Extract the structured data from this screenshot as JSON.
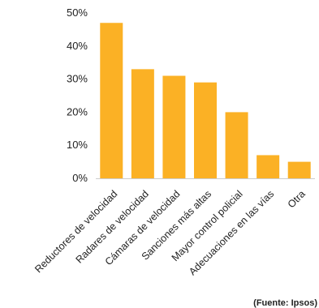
{
  "chart_data": {
    "type": "bar",
    "categories": [
      "Reductores de velocidad",
      "Radares de velocidad",
      "Cámaras de velocidad",
      "Sanciones más altas",
      "Mayor control policial",
      "Adecuaciones en las vías",
      "Otra"
    ],
    "values": [
      47,
      33,
      31,
      29,
      20,
      7,
      5
    ],
    "y_ticks": [
      "0%",
      "10%",
      "20%",
      "30%",
      "40%",
      "50%"
    ],
    "ylim": [
      0,
      50
    ],
    "grid": false,
    "legend": "none",
    "bar_color": "#FBB125",
    "axis_color": "#cccccc"
  },
  "source": "(Fuente: Ipsos)"
}
